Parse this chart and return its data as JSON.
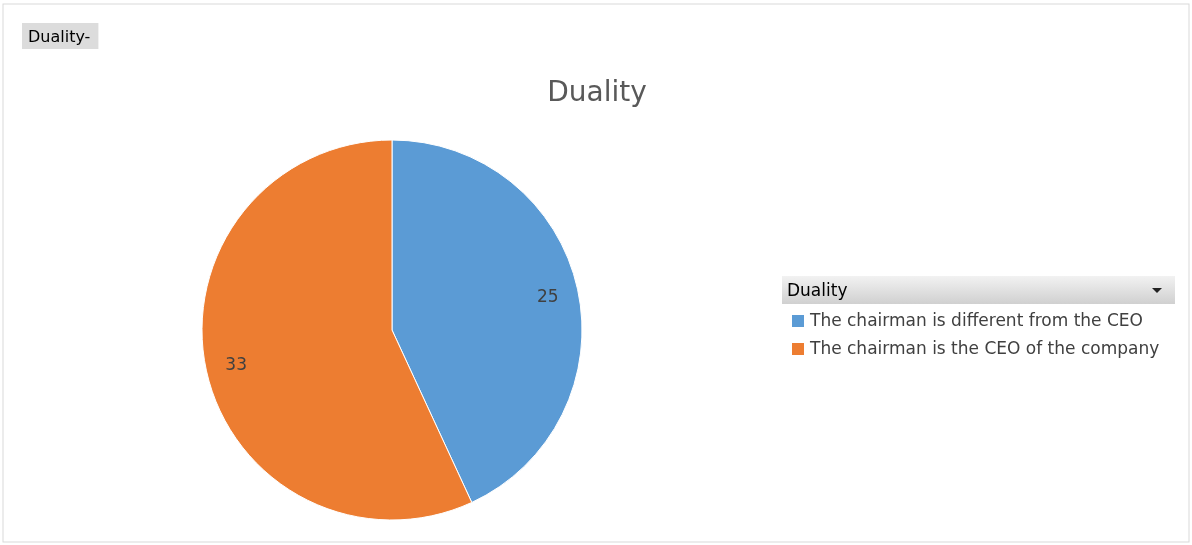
{
  "chart_data": {
    "type": "pie",
    "title": "Duality",
    "categories": [
      "The chairman is different from the CEO",
      "The chairman is the CEO of the company"
    ],
    "values": [
      25,
      33
    ],
    "colors": [
      "#5b9bd5",
      "#ed7d31"
    ],
    "data_labels": true,
    "legend": "right",
    "legend_title": "Duality",
    "annotations": [
      "Duality-"
    ]
  }
}
